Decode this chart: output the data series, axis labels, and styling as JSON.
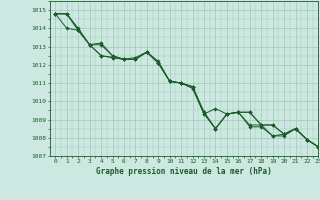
{
  "title": "Graphe pression niveau de la mer (hPa)",
  "background_color": "#cce8e0",
  "grid_color": "#a0c8b8",
  "line_color": "#1a5c2a",
  "xlim": [
    -0.5,
    23
  ],
  "ylim": [
    1007,
    1015.5
  ],
  "yticks": [
    1007,
    1008,
    1009,
    1010,
    1011,
    1012,
    1013,
    1014,
    1015
  ],
  "xticks": [
    0,
    1,
    2,
    3,
    4,
    5,
    6,
    7,
    8,
    9,
    10,
    11,
    12,
    13,
    14,
    15,
    16,
    17,
    18,
    19,
    20,
    21,
    22,
    23
  ],
  "series": [
    [
      1014.8,
      1014.8,
      1014.0,
      1013.1,
      1013.1,
      1012.5,
      1012.3,
      1012.3,
      1012.7,
      1012.1,
      1011.1,
      1011.0,
      1010.8,
      1009.4,
      1008.5,
      1009.3,
      1009.4,
      1009.4,
      1008.7,
      1008.7,
      1008.2,
      1008.5,
      1007.9,
      1007.5
    ],
    [
      1014.8,
      1014.8,
      1013.9,
      1013.1,
      1013.2,
      1012.5,
      1012.3,
      1012.3,
      1012.7,
      1012.1,
      1011.1,
      1011.0,
      1010.7,
      1009.3,
      1009.6,
      1009.3,
      1009.4,
      1009.4,
      1008.7,
      1008.7,
      1008.2,
      1008.5,
      1007.9,
      1007.5
    ],
    [
      1014.8,
      1014.8,
      1013.9,
      1013.1,
      1012.5,
      1012.4,
      1012.3,
      1012.3,
      1012.7,
      1012.1,
      1011.1,
      1011.0,
      1010.8,
      1009.4,
      1008.5,
      1009.3,
      1009.4,
      1008.6,
      1008.6,
      1008.1,
      1008.1,
      1008.5,
      1007.9,
      1007.5
    ],
    [
      1014.8,
      1014.0,
      1013.9,
      1013.1,
      1012.5,
      1012.4,
      1012.3,
      1012.4,
      1012.7,
      1012.2,
      1011.1,
      1011.0,
      1010.8,
      1009.3,
      1008.5,
      1009.3,
      1009.4,
      1008.7,
      1008.7,
      1008.1,
      1008.2,
      1008.5,
      1007.9,
      1007.5
    ]
  ]
}
